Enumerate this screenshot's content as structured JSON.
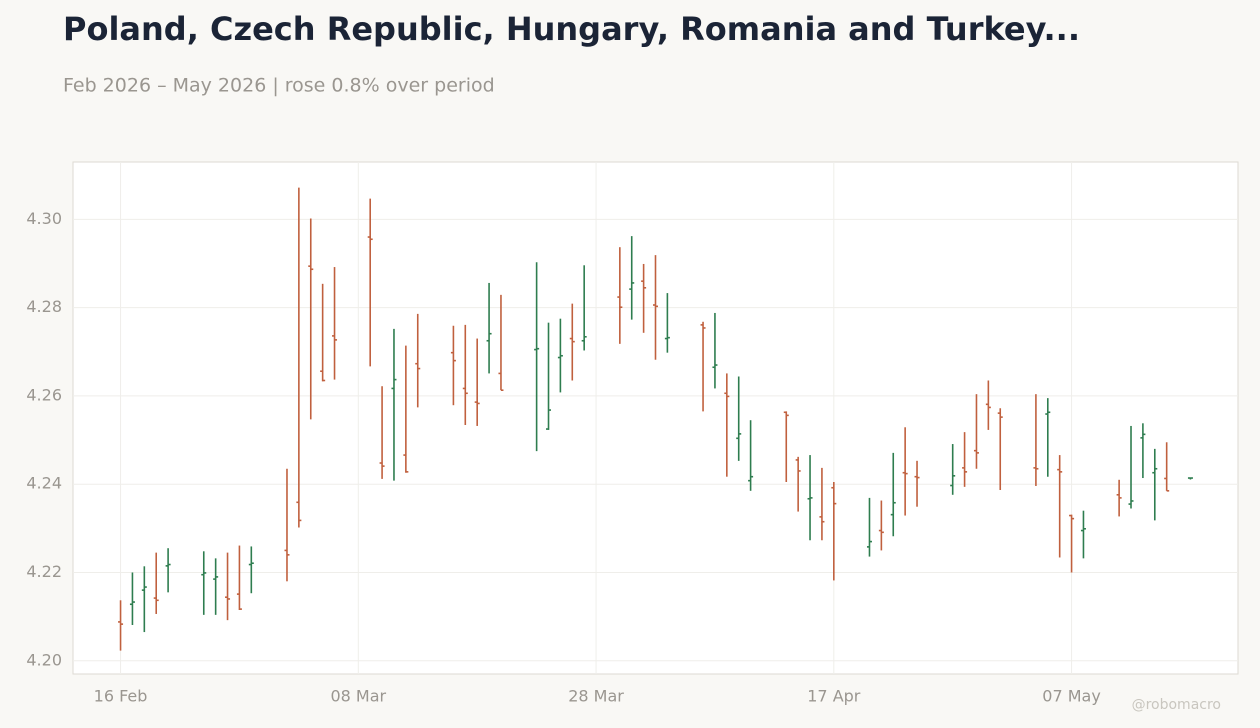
{
  "chart_data": {
    "type": "ohlc",
    "title": "Poland, Czech Republic, Hungary, Romania and Turkey...",
    "subtitle": "Feb 2026 – May 2026 | rose 0.8% over period",
    "watermark": "@robomacro",
    "up_color": "#2e7d4f",
    "down_color": "#c0603e",
    "grid": true,
    "x": [
      "2026-02-16",
      "2026-02-17",
      "2026-02-18",
      "2026-02-19",
      "2026-02-20",
      "2026-02-23",
      "2026-02-24",
      "2026-02-25",
      "2026-02-26",
      "2026-02-27",
      "2026-03-02",
      "2026-03-03",
      "2026-03-04",
      "2026-03-05",
      "2026-03-06",
      "2026-03-09",
      "2026-03-10",
      "2026-03-11",
      "2026-03-12",
      "2026-03-13",
      "2026-03-16",
      "2026-03-17",
      "2026-03-18",
      "2026-03-19",
      "2026-03-20",
      "2026-03-23",
      "2026-03-24",
      "2026-03-25",
      "2026-03-26",
      "2026-03-27",
      "2026-03-30",
      "2026-03-31",
      "2026-04-01",
      "2026-04-02",
      "2026-04-03",
      "2026-04-06",
      "2026-04-07",
      "2026-04-08",
      "2026-04-09",
      "2026-04-10",
      "2026-04-13",
      "2026-04-14",
      "2026-04-15",
      "2026-04-16",
      "2026-04-17",
      "2026-04-20",
      "2026-04-21",
      "2026-04-22",
      "2026-04-23",
      "2026-04-24",
      "2026-04-27",
      "2026-04-28",
      "2026-04-29",
      "2026-04-30",
      "2026-05-01",
      "2026-05-04",
      "2026-05-05",
      "2026-05-06",
      "2026-05-07",
      "2026-05-08",
      "2026-05-11",
      "2026-05-12",
      "2026-05-13",
      "2026-05-14",
      "2026-05-15",
      "2026-05-17"
    ],
    "open": [
      4.2088,
      4.2128,
      4.216,
      4.2142,
      4.2215,
      4.2195,
      4.2185,
      4.2144,
      4.2151,
      4.2218,
      4.225,
      4.2359,
      4.2894,
      4.2656,
      4.2736,
      4.296,
      4.2448,
      4.2617,
      4.2466,
      4.2673,
      4.2698,
      4.2617,
      4.2586,
      4.2725,
      4.2651,
      4.2705,
      4.2525,
      4.2687,
      4.273,
      4.2725,
      4.2824,
      4.2842,
      4.286,
      4.2806,
      4.273,
      4.2761,
      4.2665,
      4.2606,
      4.2504,
      4.2408,
      4.2563,
      4.2455,
      4.2367,
      4.2326,
      4.2392,
      4.2258,
      4.2295,
      4.2331,
      4.2426,
      4.2417,
      4.2397,
      4.2437,
      4.2476,
      4.2581,
      4.2561,
      4.2437,
      4.2559,
      4.2433,
      4.2329,
      4.2295,
      4.2376,
      4.2355,
      4.2505,
      4.2426,
      4.2413,
      4.2414
    ],
    "high": [
      4.2137,
      4.22,
      4.2214,
      4.2245,
      4.2255,
      4.2248,
      4.2232,
      4.2245,
      4.2261,
      4.2259,
      4.2435,
      4.3072,
      4.3002,
      4.2854,
      4.2892,
      4.3047,
      4.2622,
      4.2752,
      4.2714,
      4.2786,
      4.2759,
      4.2761,
      4.273,
      4.2856,
      4.2829,
      4.2903,
      4.2766,
      4.2775,
      4.2809,
      4.2896,
      4.2937,
      4.2962,
      4.2899,
      4.2919,
      4.2833,
      4.2768,
      4.2788,
      4.2651,
      4.2644,
      4.2545,
      4.2565,
      4.2462,
      4.2466,
      4.2437,
      4.2405,
      4.2369,
      4.2363,
      4.2471,
      4.2529,
      4.2453,
      4.2491,
      4.2518,
      4.2604,
      4.2635,
      4.2572,
      4.2604,
      4.2595,
      4.2466,
      4.2331,
      4.234,
      4.241,
      4.2532,
      4.2538,
      4.248,
      4.2495,
      4.2414
    ],
    "low": [
      4.2023,
      4.2081,
      4.2065,
      4.2106,
      4.2155,
      4.2104,
      4.2104,
      4.2092,
      4.2115,
      4.2153,
      4.218,
      4.2302,
      4.2547,
      4.2633,
      4.2637,
      4.2667,
      4.2412,
      4.2408,
      4.2426,
      4.2574,
      4.2579,
      4.2534,
      4.2532,
      4.2651,
      4.2613,
      4.2475,
      4.2523,
      4.2608,
      4.2635,
      4.2703,
      4.2718,
      4.2773,
      4.2743,
      4.2682,
      4.2698,
      4.2565,
      4.2617,
      4.2417,
      4.2453,
      4.2385,
      4.2405,
      4.2338,
      4.2273,
      4.2273,
      4.2182,
      4.2236,
      4.225,
      4.2282,
      4.2329,
      4.2349,
      4.2376,
      4.2394,
      4.2435,
      4.2523,
      4.2387,
      4.2396,
      4.2417,
      4.2234,
      4.22,
      4.2232,
      4.2327,
      4.2345,
      4.2414,
      4.2318,
      4.2385,
      4.2414
    ],
    "close": [
      4.2083,
      4.2133,
      4.2167,
      4.2137,
      4.2218,
      4.2199,
      4.219,
      4.214,
      4.2117,
      4.2221,
      4.224,
      4.2318,
      4.2887,
      4.2635,
      4.2727,
      4.2955,
      4.2441,
      4.2637,
      4.2428,
      4.2662,
      4.268,
      4.2606,
      4.2583,
      4.2741,
      4.2613,
      4.2707,
      4.2568,
      4.2691,
      4.2723,
      4.2734,
      4.2801,
      4.2856,
      4.2845,
      4.2803,
      4.2732,
      4.2754,
      4.267,
      4.2599,
      4.2514,
      4.2417,
      4.2556,
      4.243,
      4.2369,
      4.2315,
      4.2356,
      4.227,
      4.2291,
      4.2358,
      4.2424,
      4.2415,
      4.2419,
      4.2428,
      4.2471,
      4.2574,
      4.2552,
      4.2435,
      4.2563,
      4.2428,
      4.2322,
      4.2299,
      4.2369,
      4.2362,
      4.2513,
      4.2435,
      4.2385,
      4.2414
    ],
    "xlim": [
      "2026-02-12",
      "2026-05-21"
    ],
    "xticks": [
      {
        "value": "2026-02-16",
        "label": "16 Feb"
      },
      {
        "value": "2026-03-08",
        "label": "08 Mar"
      },
      {
        "value": "2026-03-28",
        "label": "28 Mar"
      },
      {
        "value": "2026-04-17",
        "label": "17 Apr"
      },
      {
        "value": "2026-05-07",
        "label": "07 May"
      }
    ],
    "ylim": [
      4.197,
      4.313
    ],
    "yticks": [
      {
        "value": 4.2,
        "label": "4.20"
      },
      {
        "value": 4.22,
        "label": "4.22"
      },
      {
        "value": 4.24,
        "label": "4.24"
      },
      {
        "value": 4.26,
        "label": "4.26"
      },
      {
        "value": 4.28,
        "label": "4.28"
      },
      {
        "value": 4.3,
        "label": "4.30"
      }
    ]
  }
}
